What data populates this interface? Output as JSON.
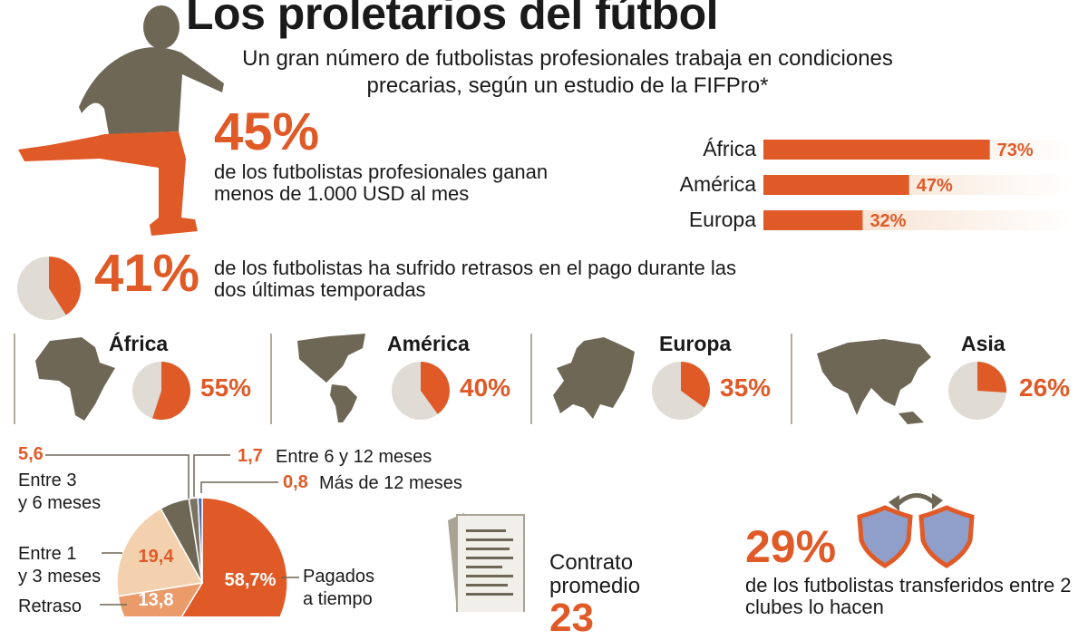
{
  "title": "Los proletarios del fútbol",
  "subtitle": "Un gran número de futbolistas profesionales trabaja en condiciones precarias, según un estudio de la FIFPro*",
  "stat_low_salary": {
    "percent": "45%",
    "text": "de los futbolistas profesionales ganan menos de 1.000 USD al mes"
  },
  "salary_chart": {
    "type": "bar",
    "categories": [
      "África",
      "América",
      "Europa"
    ],
    "values": [
      73,
      47,
      32
    ],
    "labels": [
      "73%",
      "47%",
      "32%"
    ],
    "xlim": [
      0,
      100
    ]
  },
  "stat_delays": {
    "percent": "41%",
    "value": 41,
    "text": "de los futbolistas ha sufrido retrasos en el pago durante las dos últimas temporadas"
  },
  "regions": [
    {
      "name": "África",
      "value": 55,
      "label": "55%"
    },
    {
      "name": "América",
      "value": 40,
      "label": "40%"
    },
    {
      "name": "Europa",
      "value": 35,
      "label": "35%"
    },
    {
      "name": "Asia",
      "value": 26,
      "label": "26%"
    }
  ],
  "payment_chart": {
    "type": "pie",
    "slices": [
      {
        "label": "Pagados a tiempo",
        "value": 58.7,
        "text": "58,7%"
      },
      {
        "label": "Retraso",
        "value": 13.8,
        "text": "13,8"
      },
      {
        "label": "Entre 1 y 3 meses",
        "value": 19.4,
        "text": "19,4"
      },
      {
        "label": "Entre 3 y 6 meses",
        "value": 5.6,
        "text": "5,6"
      },
      {
        "label": "Entre 6 y 12 meses",
        "value": 1.7,
        "text": "1,7"
      },
      {
        "label": "Más de 12 meses",
        "value": 0.8,
        "text": "0,8"
      }
    ],
    "label_lines": {
      "entre3_a": "Entre 3",
      "entre3_b": "y 6 meses",
      "entre1_a": "Entre 1",
      "entre1_b": "y 3 meses",
      "retraso": "Retraso",
      "pagados_a": "Pagados",
      "pagados_b": "a tiempo"
    }
  },
  "contract": {
    "line1": "Contrato",
    "line2": "promedio",
    "value": "23"
  },
  "transfers": {
    "percent": "29%",
    "text": "de los futbolistas transferidos entre 2 clubes lo hacen"
  },
  "colors": {
    "accent": "#e05a28",
    "dark": "#6f6756",
    "pie_bg": "#e0dcd5",
    "light_orange": "#f4d7bf",
    "shield": "#8f9fc9"
  }
}
